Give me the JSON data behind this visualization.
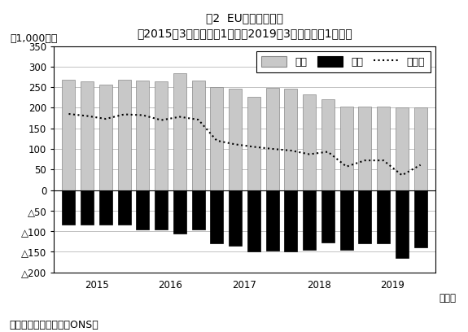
{
  "title_line1": "図2  EU移民数の変化",
  "title_line2": "（2015年3月末までの1年間～2019年3月末までの1年間）",
  "ylabel": "（1,000人）",
  "xlabel_suffix": "（年）",
  "source": "（出所）国民統計局（ONS）",
  "legend_inflow": "流入",
  "legend_outflow": "流出",
  "legend_net": "純移民",
  "ylim": [
    -200,
    350
  ],
  "ytick_vals": [
    -200,
    -150,
    -100,
    -50,
    0,
    50,
    100,
    150,
    200,
    250,
    300,
    350
  ],
  "ytick_labels": [
    "△200",
    "△150",
    "△100",
    "△50",
    "0",
    "50",
    "100",
    "150",
    "200",
    "250",
    "300",
    "350"
  ],
  "x_positions": [
    0,
    1,
    2,
    3,
    4,
    5,
    6,
    7,
    8,
    9,
    10,
    11,
    12,
    13,
    14,
    15,
    16,
    17,
    18,
    19
  ],
  "inflow": [
    269,
    264,
    257,
    268,
    267,
    265,
    283,
    266,
    250,
    246,
    227,
    248,
    246,
    232,
    221,
    202,
    202,
    202,
    201,
    201
  ],
  "outflow": [
    -84,
    -84,
    -84,
    -84,
    -95,
    -95,
    -105,
    -95,
    -130,
    -135,
    -150,
    -148,
    -150,
    -145,
    -128,
    -145,
    -130,
    -130,
    -165,
    -140
  ],
  "net": [
    185,
    180,
    173,
    184,
    182,
    170,
    178,
    171,
    120,
    111,
    105,
    100,
    96,
    87,
    93,
    57,
    72,
    72,
    36,
    61
  ],
  "xtick_positions": [
    1.5,
    5.5,
    9.5,
    13.5,
    17.5
  ],
  "xtick_labels": [
    "2015",
    "2016",
    "2017",
    "2018",
    "2019"
  ],
  "bar_width": 0.7,
  "inflow_color": "#c8c8c8",
  "outflow_color": "#000000",
  "net_color": "#000000",
  "background_color": "#ffffff",
  "title_fontsize": 10,
  "axis_fontsize": 9,
  "tick_fontsize": 8.5,
  "xlim": [
    -0.8,
    19.8
  ]
}
